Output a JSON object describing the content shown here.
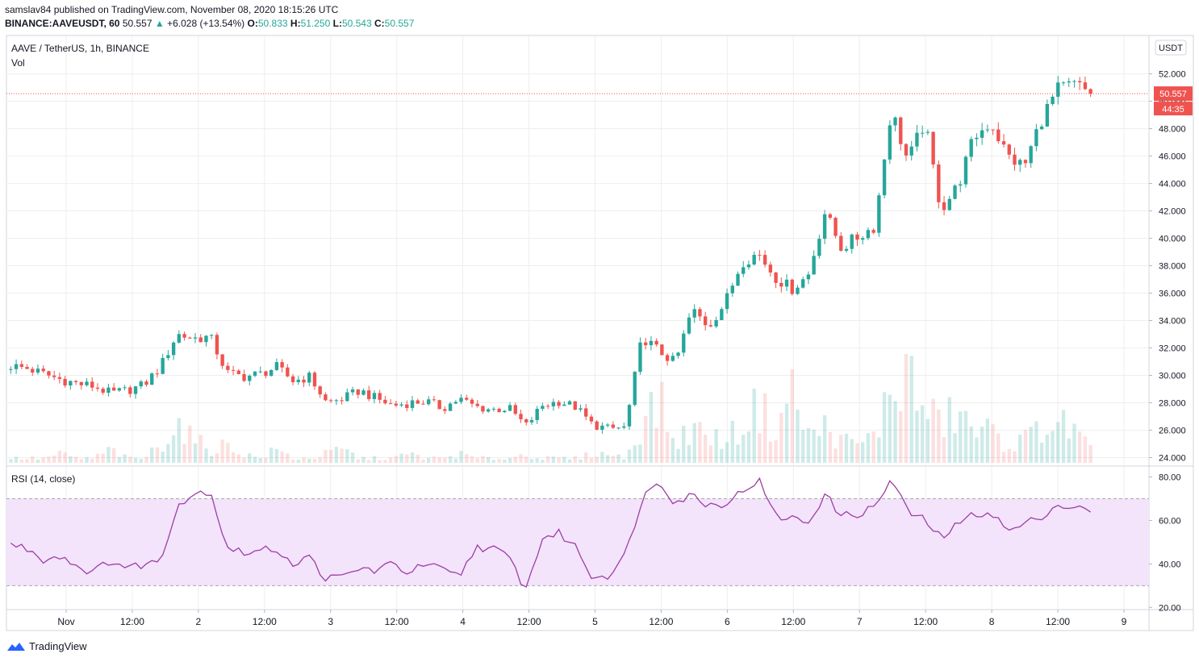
{
  "header": {
    "line1": "samslav84 published on TradingView.com, November 08, 2020 18:15:26 UTC",
    "symbol": "BINANCE:AAVEUSDT, 60",
    "last": "50.557",
    "change_arrow": "▲",
    "change": "+6.028 (+13.54%)",
    "o_label": "O:",
    "o": "50.833",
    "h_label": "H:",
    "h": "51.250",
    "l_label": "L:",
    "l": "50.543",
    "c_label": "C:",
    "c": "50.557"
  },
  "legend": {
    "title": "AAVE / TetherUS, 1h, BINANCE",
    "vol": "Vol",
    "rsi": "RSI (14, close)"
  },
  "footer": {
    "brand": "TradingView",
    "icon": "tradingview-logo-icon"
  },
  "colors": {
    "up": "#26a69a",
    "down": "#ef5350",
    "rsi_line": "#9c3fa3",
    "rsi_band": "#f3e3fb",
    "grid": "#eeeeee"
  },
  "chart_data": [
    {
      "type": "candlestick",
      "title": "AAVE / TetherUS, 1h, BINANCE",
      "currency": "USDT",
      "last_price": 50.557,
      "last_price_label": "50.557",
      "countdown": "44:35",
      "ylim": [
        23.5,
        54.8
      ],
      "yticks": [
        "24.000",
        "26.000",
        "28.000",
        "30.000",
        "32.000",
        "34.000",
        "36.000",
        "38.000",
        "40.000",
        "42.000",
        "44.000",
        "46.000",
        "48.000",
        "50.000",
        "52.000"
      ],
      "xticks": [
        "Nov",
        "12:00",
        "2",
        "12:00",
        "3",
        "12:00",
        "4",
        "12:00",
        "5",
        "12:00",
        "6",
        "12:00",
        "7",
        "12:00",
        "8",
        "12:00",
        "9"
      ],
      "price_keypoints": [
        30.7,
        30.5,
        30.1,
        29.7,
        29.4,
        29.2,
        28.7,
        28.9,
        29.3,
        30.6,
        33.0,
        32.7,
        32.8,
        30.2,
        29.9,
        30.1,
        30.6,
        29.6,
        29.9,
        28.0,
        28.3,
        28.9,
        28.3,
        27.8,
        28.0,
        28.1,
        27.6,
        28.3,
        27.7,
        27.5,
        27.6,
        26.3,
        27.8,
        28.1,
        27.7,
        26.4,
        26.1,
        26.2,
        32.8,
        31.8,
        30.9,
        34.8,
        33.6,
        35.3,
        38.3,
        38.9,
        37.2,
        36.3,
        37.3,
        41.9,
        39.3,
        40.1,
        40.9,
        49.4,
        45.6,
        48.5,
        42.1,
        43.8,
        47.4,
        48.5,
        46.0,
        45.2,
        48.6,
        50.8,
        51.2,
        50.6
      ]
    },
    {
      "type": "bar",
      "title": "Vol",
      "note": "volume histogram, relative heights",
      "volume_keypoints": [
        0.1,
        0.1,
        0.1,
        0.2,
        0.1,
        0.1,
        0.3,
        0.1,
        0.1,
        0.4,
        0.9,
        0.5,
        0.3,
        0.4,
        0.2,
        0.1,
        0.3,
        0.1,
        0.1,
        0.2,
        0.3,
        0.1,
        0.1,
        0.1,
        0.2,
        0.1,
        0.1,
        0.2,
        0.1,
        0.1,
        0.1,
        0.2,
        0.1,
        0.1,
        0.1,
        0.2,
        0.2,
        0.1,
        0.9,
        1.4,
        0.4,
        0.8,
        0.6,
        0.5,
        0.8,
        1.3,
        0.7,
        1.6,
        0.6,
        0.8,
        0.5,
        0.4,
        0.6,
        1.6,
        2.0,
        1.1,
        0.9,
        1.1,
        0.7,
        0.7,
        0.4,
        0.5,
        0.8,
        0.9,
        0.7,
        0.3
      ]
    },
    {
      "type": "line",
      "title": "RSI (14, close)",
      "ylim": [
        19,
        85
      ],
      "yticks": [
        "20.00",
        "40.00",
        "60.00",
        "80.00"
      ],
      "band": [
        30,
        70
      ],
      "rsi_keypoints": [
        49,
        47,
        42,
        44,
        39,
        36,
        42,
        38,
        40,
        41,
        67,
        72,
        74,
        48,
        45,
        46,
        47,
        40,
        43,
        33,
        34,
        38,
        37,
        40,
        36,
        40,
        37,
        34,
        48,
        47,
        43,
        28,
        52,
        54,
        48,
        34,
        35,
        44,
        70,
        79,
        68,
        72,
        67,
        68,
        73,
        79,
        62,
        61,
        59,
        72,
        62,
        63,
        66,
        79,
        64,
        60,
        52,
        58,
        63,
        64,
        55,
        58,
        62,
        67,
        66,
        64
      ]
    }
  ]
}
